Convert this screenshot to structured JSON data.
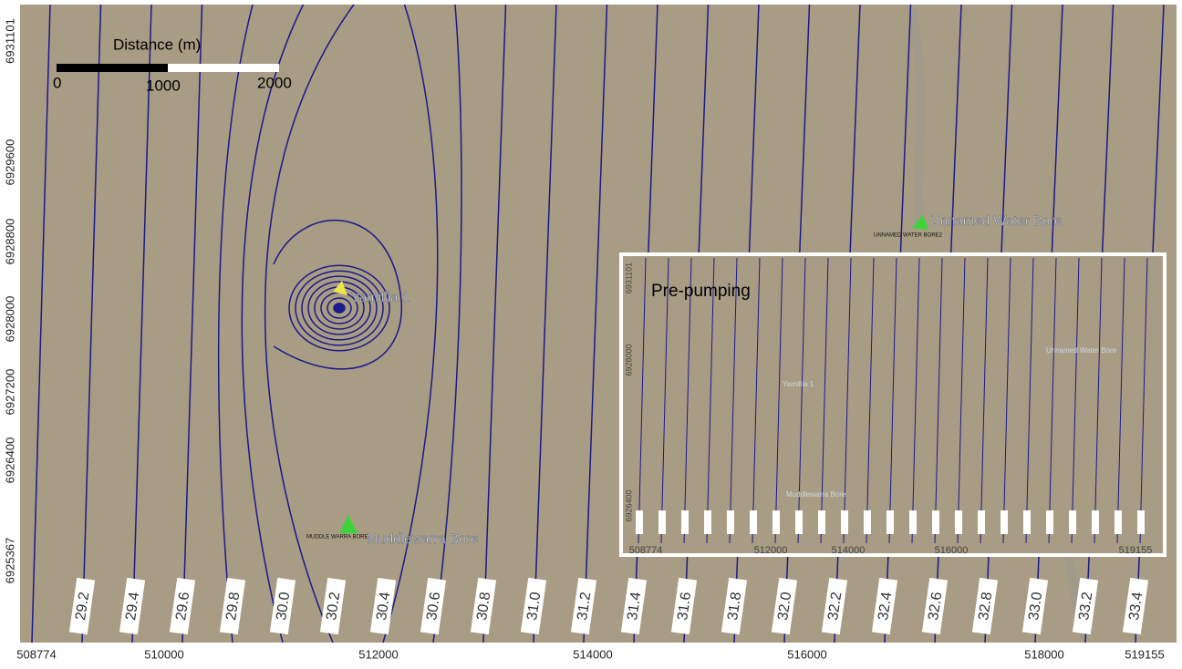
{
  "scale_bar": {
    "title": "Distance (m)",
    "labels": [
      "0",
      "1000",
      "2000"
    ]
  },
  "x_axis": {
    "labels": [
      "508774",
      "510000",
      "512000",
      "514000",
      "516000",
      "518000",
      "519155"
    ]
  },
  "y_axis": {
    "labels": [
      "6931101",
      "6929600",
      "6928800",
      "6928000",
      "6927200",
      "6926400",
      "6925367"
    ]
  },
  "contour_labels": [
    "29.2",
    "29.4",
    "29.6",
    "29.8",
    "30.0",
    "30.2",
    "30.4",
    "30.6",
    "30.8",
    "31.0",
    "31.2",
    "31.4",
    "31.6",
    "31.8",
    "32.0",
    "32.2",
    "32.4",
    "32.6",
    "32.8",
    "33.0",
    "33.2",
    "33.4"
  ],
  "places": {
    "unnamed_bore": "Unnamed Water Bore",
    "unnamed_bore_code": "UNNAMED WATER BORE2",
    "yamillia": "Yamillia 1",
    "muddlewarra": "Muddlewarra Bore",
    "muddlewarra_code": "MUDDLE WARRA BORE"
  },
  "inset": {
    "title": "Pre-pumping",
    "x_labels": [
      "508774",
      "512000",
      "514000",
      "516000",
      "519155"
    ],
    "y_labels": [
      "6931101",
      "6928000",
      "6926400"
    ]
  }
}
